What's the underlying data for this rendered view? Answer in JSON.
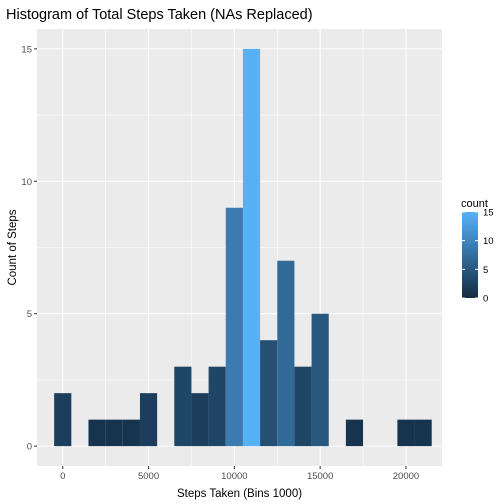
{
  "chart_data": {
    "type": "bar",
    "title": "Histogram of Total Steps Taken (NAs Replaced)",
    "xlabel": "Steps Taken (Bins 1000)",
    "ylabel": "Count of Steps",
    "binwidth": 1000,
    "bins": [
      {
        "center": 0,
        "count": 2
      },
      {
        "center": 2000,
        "count": 1
      },
      {
        "center": 3000,
        "count": 1
      },
      {
        "center": 4000,
        "count": 1
      },
      {
        "center": 5000,
        "count": 2
      },
      {
        "center": 7000,
        "count": 3
      },
      {
        "center": 8000,
        "count": 2
      },
      {
        "center": 9000,
        "count": 3
      },
      {
        "center": 10000,
        "count": 9
      },
      {
        "center": 11000,
        "count": 15
      },
      {
        "center": 12000,
        "count": 4
      },
      {
        "center": 13000,
        "count": 7
      },
      {
        "center": 14000,
        "count": 3
      },
      {
        "center": 15000,
        "count": 5
      },
      {
        "center": 17000,
        "count": 1
      },
      {
        "center": 20000,
        "count": 1
      },
      {
        "center": 21000,
        "count": 1
      }
    ],
    "xlim": [
      -1500,
      22100
    ],
    "ylim": [
      -0.75,
      15.75
    ],
    "x_ticks": [
      0,
      5000,
      10000,
      15000,
      20000
    ],
    "x_tick_labels": [
      "0",
      "5000",
      "10000",
      "15000",
      "20000"
    ],
    "y_ticks": [
      0,
      5,
      10,
      15
    ],
    "y_tick_labels": [
      "0",
      "5",
      "10",
      "15"
    ],
    "grid": true,
    "legend": {
      "title": "count",
      "placement": "right",
      "ticks": [
        0,
        5,
        10,
        15
      ],
      "tick_labels": [
        "0",
        "5",
        "10",
        "15"
      ],
      "range": [
        0,
        15
      ],
      "low_color": "#132b43",
      "high_color": "#56b1f7"
    },
    "colors": {
      "panel_background": "#ebebeb",
      "grid_major": "#ffffff",
      "tick_text": "#4d4d4d"
    }
  }
}
